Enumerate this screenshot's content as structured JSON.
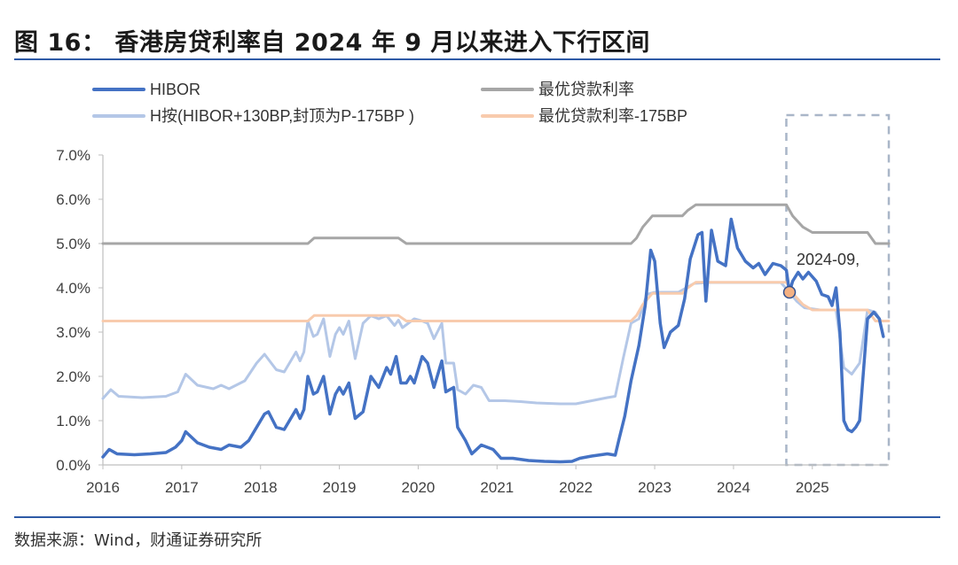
{
  "header": {
    "title": "图 16：  香港房贷利率自 2024 年 9 月以来进入下行区间"
  },
  "footer": {
    "source": "数据来源：Wind，财通证券研究所"
  },
  "colors": {
    "hibor": "#4472c4",
    "prime": "#a6a6a6",
    "h_plan": "#b4c7e7",
    "prime_minus": "#f8cbad",
    "rule": "#2e5aa6"
  },
  "chart_data": {
    "type": "line",
    "title": "",
    "xlabel": "",
    "ylabel": "",
    "xlim": [
      2016.0,
      2025.97
    ],
    "ylim": [
      0,
      7
    ],
    "y_ticks": [
      "0.0%",
      "1.0%",
      "2.0%",
      "3.0%",
      "4.0%",
      "5.0%",
      "6.0%",
      "7.0%"
    ],
    "x_ticks": [
      "2016",
      "2017",
      "2018",
      "2019",
      "2020",
      "2021",
      "2022",
      "2023",
      "2024",
      "2025"
    ],
    "grid": false,
    "legend_position": "top",
    "annotation": {
      "text": "2024-09,",
      "x": 2024.71,
      "y": 3.9
    },
    "highlight_region": {
      "x": [
        2024.67,
        2025.97
      ],
      "y": [
        0,
        7.9
      ],
      "style": "dashed"
    },
    "series": [
      {
        "name": "H按(HIBOR+130BP,封顶为P-175BP )",
        "color": "#b4c7e7",
        "points": [
          [
            2016.0,
            1.5
          ],
          [
            2016.1,
            1.7
          ],
          [
            2016.2,
            1.55
          ],
          [
            2016.5,
            1.52
          ],
          [
            2016.8,
            1.55
          ],
          [
            2016.95,
            1.65
          ],
          [
            2017.05,
            2.05
          ],
          [
            2017.2,
            1.8
          ],
          [
            2017.4,
            1.72
          ],
          [
            2017.5,
            1.8
          ],
          [
            2017.6,
            1.72
          ],
          [
            2017.8,
            1.9
          ],
          [
            2017.95,
            2.3
          ],
          [
            2018.05,
            2.5
          ],
          [
            2018.2,
            2.15
          ],
          [
            2018.3,
            2.1
          ],
          [
            2018.45,
            2.55
          ],
          [
            2018.5,
            2.35
          ],
          [
            2018.55,
            2.55
          ],
          [
            2018.6,
            3.25
          ],
          [
            2018.67,
            2.9
          ],
          [
            2018.72,
            2.95
          ],
          [
            2018.8,
            3.3
          ],
          [
            2018.88,
            2.45
          ],
          [
            2018.95,
            2.95
          ],
          [
            2019.0,
            3.1
          ],
          [
            2019.05,
            2.95
          ],
          [
            2019.12,
            3.25
          ],
          [
            2019.2,
            2.4
          ],
          [
            2019.3,
            3.2
          ],
          [
            2019.4,
            3.37
          ],
          [
            2019.5,
            3.3
          ],
          [
            2019.6,
            3.37
          ],
          [
            2019.7,
            3.15
          ],
          [
            2019.75,
            3.27
          ],
          [
            2019.8,
            3.1
          ],
          [
            2019.95,
            3.3
          ],
          [
            2020.05,
            3.25
          ],
          [
            2020.12,
            3.2
          ],
          [
            2020.2,
            2.85
          ],
          [
            2020.3,
            3.2
          ],
          [
            2020.35,
            2.3
          ],
          [
            2020.45,
            2.3
          ],
          [
            2020.5,
            1.7
          ],
          [
            2020.6,
            1.6
          ],
          [
            2020.7,
            1.8
          ],
          [
            2020.8,
            1.75
          ],
          [
            2020.9,
            1.45
          ],
          [
            2021.1,
            1.45
          ],
          [
            2021.3,
            1.43
          ],
          [
            2021.5,
            1.4
          ],
          [
            2021.8,
            1.38
          ],
          [
            2022.0,
            1.38
          ],
          [
            2022.2,
            1.45
          ],
          [
            2022.4,
            1.52
          ],
          [
            2022.5,
            1.55
          ],
          [
            2022.6,
            2.4
          ],
          [
            2022.7,
            3.2
          ],
          [
            2022.8,
            3.3
          ],
          [
            2022.9,
            3.85
          ],
          [
            2023.0,
            3.9
          ],
          [
            2023.3,
            3.9
          ],
          [
            2023.5,
            4.1
          ],
          [
            2023.7,
            4.12
          ],
          [
            2024.0,
            4.12
          ],
          [
            2024.3,
            4.12
          ],
          [
            2024.6,
            4.12
          ],
          [
            2024.71,
            3.9
          ],
          [
            2024.8,
            3.7
          ],
          [
            2024.9,
            3.55
          ],
          [
            2025.1,
            3.5
          ],
          [
            2025.3,
            3.5
          ],
          [
            2025.4,
            2.2
          ],
          [
            2025.5,
            2.05
          ],
          [
            2025.6,
            2.3
          ],
          [
            2025.7,
            3.5
          ],
          [
            2025.8,
            3.45
          ],
          [
            2025.87,
            3.25
          ]
        ]
      },
      {
        "name": "最优贷款利率",
        "color": "#a6a6a6",
        "points": [
          [
            2016.0,
            5.0
          ],
          [
            2018.6,
            5.0
          ],
          [
            2018.68,
            5.125
          ],
          [
            2019.2,
            5.125
          ],
          [
            2019.75,
            5.125
          ],
          [
            2019.85,
            5.0
          ],
          [
            2022.7,
            5.0
          ],
          [
            2022.77,
            5.125
          ],
          [
            2022.85,
            5.375
          ],
          [
            2022.97,
            5.625
          ],
          [
            2023.35,
            5.625
          ],
          [
            2023.42,
            5.75
          ],
          [
            2023.52,
            5.875
          ],
          [
            2024.67,
            5.875
          ],
          [
            2024.75,
            5.625
          ],
          [
            2024.88,
            5.375
          ],
          [
            2025.0,
            5.25
          ],
          [
            2025.7,
            5.25
          ],
          [
            2025.8,
            5.0
          ],
          [
            2025.97,
            5.0
          ]
        ]
      },
      {
        "name": "最优贷款利率-175BP",
        "color": "#f8cbad",
        "points": [
          [
            2016.0,
            3.25
          ],
          [
            2018.6,
            3.25
          ],
          [
            2018.68,
            3.375
          ],
          [
            2019.75,
            3.375
          ],
          [
            2019.85,
            3.25
          ],
          [
            2022.7,
            3.25
          ],
          [
            2022.77,
            3.375
          ],
          [
            2022.85,
            3.625
          ],
          [
            2022.97,
            3.875
          ],
          [
            2023.35,
            3.875
          ],
          [
            2023.42,
            4.0
          ],
          [
            2023.52,
            4.125
          ],
          [
            2024.67,
            4.125
          ],
          [
            2024.75,
            3.875
          ],
          [
            2024.88,
            3.625
          ],
          [
            2025.0,
            3.5
          ],
          [
            2025.7,
            3.5
          ],
          [
            2025.8,
            3.25
          ],
          [
            2025.97,
            3.25
          ]
        ]
      },
      {
        "name": "HIBOR",
        "color": "#4472c4",
        "points": [
          [
            2016.0,
            0.18
          ],
          [
            2016.08,
            0.35
          ],
          [
            2016.18,
            0.25
          ],
          [
            2016.4,
            0.23
          ],
          [
            2016.6,
            0.25
          ],
          [
            2016.8,
            0.28
          ],
          [
            2016.92,
            0.4
          ],
          [
            2017.0,
            0.55
          ],
          [
            2017.05,
            0.75
          ],
          [
            2017.2,
            0.5
          ],
          [
            2017.35,
            0.4
          ],
          [
            2017.5,
            0.35
          ],
          [
            2017.6,
            0.45
          ],
          [
            2017.75,
            0.4
          ],
          [
            2017.85,
            0.55
          ],
          [
            2017.95,
            0.85
          ],
          [
            2018.05,
            1.15
          ],
          [
            2018.1,
            1.2
          ],
          [
            2018.2,
            0.85
          ],
          [
            2018.3,
            0.8
          ],
          [
            2018.45,
            1.25
          ],
          [
            2018.5,
            1.05
          ],
          [
            2018.55,
            1.25
          ],
          [
            2018.6,
            2.0
          ],
          [
            2018.67,
            1.6
          ],
          [
            2018.72,
            1.65
          ],
          [
            2018.8,
            2.0
          ],
          [
            2018.88,
            1.15
          ],
          [
            2018.95,
            1.6
          ],
          [
            2019.0,
            1.75
          ],
          [
            2019.05,
            1.6
          ],
          [
            2019.12,
            1.85
          ],
          [
            2019.2,
            1.05
          ],
          [
            2019.3,
            1.2
          ],
          [
            2019.4,
            2.0
          ],
          [
            2019.5,
            1.75
          ],
          [
            2019.6,
            2.2
          ],
          [
            2019.65,
            2.05
          ],
          [
            2019.72,
            2.45
          ],
          [
            2019.78,
            1.85
          ],
          [
            2019.85,
            1.85
          ],
          [
            2019.9,
            2.0
          ],
          [
            2019.95,
            1.85
          ],
          [
            2020.05,
            2.45
          ],
          [
            2020.12,
            2.3
          ],
          [
            2020.2,
            1.75
          ],
          [
            2020.3,
            2.35
          ],
          [
            2020.35,
            1.65
          ],
          [
            2020.45,
            1.75
          ],
          [
            2020.5,
            0.85
          ],
          [
            2020.6,
            0.55
          ],
          [
            2020.68,
            0.25
          ],
          [
            2020.8,
            0.45
          ],
          [
            2020.95,
            0.35
          ],
          [
            2021.05,
            0.15
          ],
          [
            2021.2,
            0.15
          ],
          [
            2021.4,
            0.1
          ],
          [
            2021.6,
            0.08
          ],
          [
            2021.8,
            0.07
          ],
          [
            2021.95,
            0.08
          ],
          [
            2022.05,
            0.15
          ],
          [
            2022.2,
            0.2
          ],
          [
            2022.4,
            0.25
          ],
          [
            2022.5,
            0.22
          ],
          [
            2022.55,
            0.6
          ],
          [
            2022.62,
            1.1
          ],
          [
            2022.7,
            1.9
          ],
          [
            2022.8,
            2.7
          ],
          [
            2022.88,
            3.6
          ],
          [
            2022.95,
            4.85
          ],
          [
            2023.0,
            4.6
          ],
          [
            2023.07,
            3.2
          ],
          [
            2023.12,
            2.65
          ],
          [
            2023.2,
            3.0
          ],
          [
            2023.3,
            3.15
          ],
          [
            2023.38,
            3.75
          ],
          [
            2023.45,
            4.65
          ],
          [
            2023.55,
            5.2
          ],
          [
            2023.6,
            5.25
          ],
          [
            2023.65,
            3.7
          ],
          [
            2023.72,
            5.3
          ],
          [
            2023.8,
            4.6
          ],
          [
            2023.9,
            4.5
          ],
          [
            2023.97,
            5.55
          ],
          [
            2024.05,
            4.9
          ],
          [
            2024.15,
            4.6
          ],
          [
            2024.25,
            4.45
          ],
          [
            2024.32,
            4.55
          ],
          [
            2024.4,
            4.3
          ],
          [
            2024.5,
            4.55
          ],
          [
            2024.6,
            4.5
          ],
          [
            2024.67,
            4.4
          ],
          [
            2024.71,
            3.9
          ],
          [
            2024.75,
            4.15
          ],
          [
            2024.82,
            4.35
          ],
          [
            2024.88,
            4.2
          ],
          [
            2024.95,
            4.35
          ],
          [
            2025.05,
            4.15
          ],
          [
            2025.12,
            3.85
          ],
          [
            2025.2,
            3.8
          ],
          [
            2025.25,
            3.6
          ],
          [
            2025.3,
            4.0
          ],
          [
            2025.35,
            3.0
          ],
          [
            2025.4,
            1.0
          ],
          [
            2025.45,
            0.8
          ],
          [
            2025.5,
            0.75
          ],
          [
            2025.55,
            0.85
          ],
          [
            2025.6,
            1.0
          ],
          [
            2025.7,
            3.3
          ],
          [
            2025.78,
            3.45
          ],
          [
            2025.85,
            3.3
          ],
          [
            2025.9,
            2.9
          ]
        ]
      }
    ],
    "legend": [
      {
        "series": 3,
        "label": "HIBOR"
      },
      {
        "series": 1,
        "label": "最优贷款利率"
      },
      {
        "series": 0,
        "label": "H按(HIBOR+130BP,封顶为P-175BP )"
      },
      {
        "series": 2,
        "label": "最优贷款利率-175BP"
      }
    ]
  }
}
